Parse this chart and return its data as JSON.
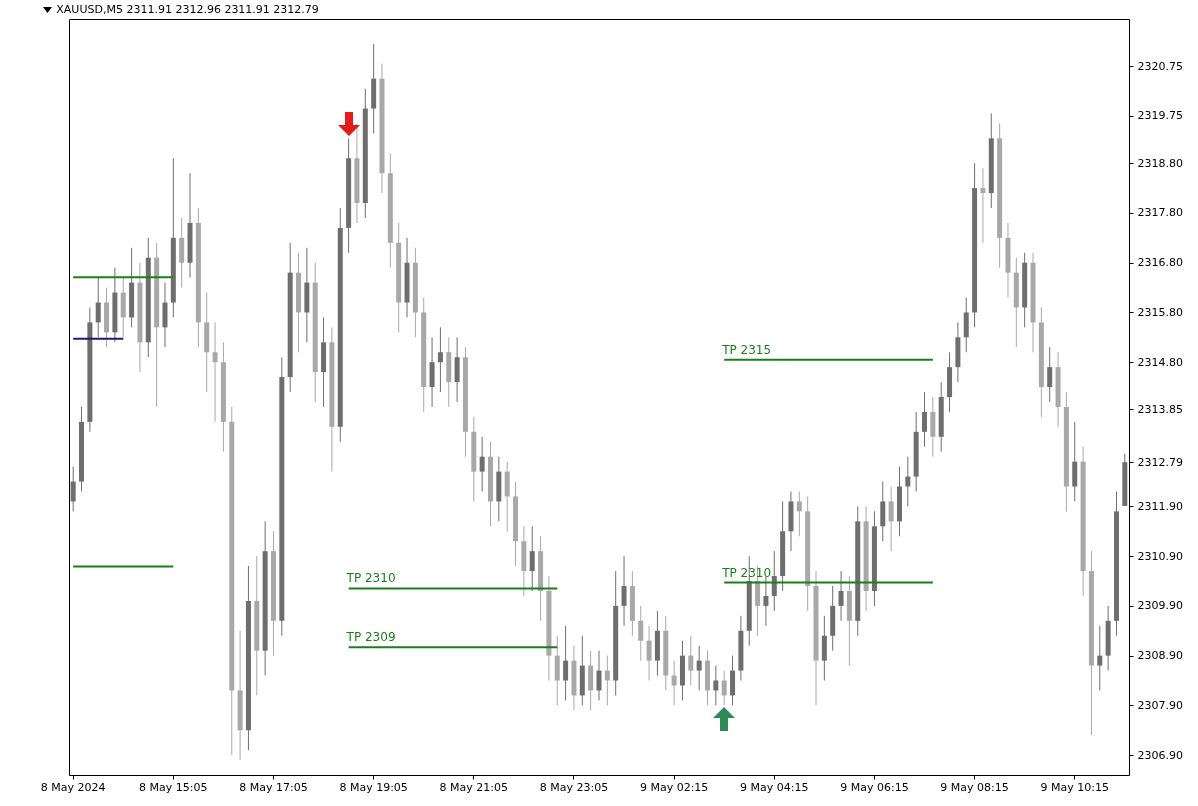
{
  "chart_data": {
    "type": "candlestick",
    "title": "XAUUSD,M5  2311.91 2312.96 2311.91 2312.79",
    "categories": [
      "8 May 2024",
      null,
      null,
      null,
      null,
      null,
      null,
      null,
      null,
      null,
      null,
      null,
      "8 May 15:05",
      null,
      null,
      null,
      null,
      null,
      null,
      null,
      null,
      null,
      null,
      null,
      "8 May 17:05",
      null,
      null,
      null,
      null,
      null,
      null,
      null,
      null,
      null,
      null,
      null,
      "8 May 19:05",
      null,
      null,
      null,
      null,
      null,
      null,
      null,
      null,
      null,
      null,
      null,
      "8 May 21:05",
      null,
      null,
      null,
      null,
      null,
      null,
      null,
      null,
      null,
      null,
      null,
      "8 May 23:05",
      null,
      null,
      null,
      null,
      null,
      null,
      null,
      null,
      null,
      null,
      null,
      "9 May 02:15",
      null,
      null,
      null,
      null,
      null,
      null,
      null,
      null,
      null,
      null,
      null,
      "9 May 04:15",
      null,
      null,
      null,
      null,
      null,
      null,
      null,
      null,
      null,
      null,
      null,
      "9 May 06:15",
      null,
      null,
      null,
      null,
      null,
      null,
      null,
      null,
      null,
      null,
      null,
      "9 May 08:15",
      null,
      null,
      null,
      null,
      null,
      null,
      null,
      null,
      null,
      null,
      null,
      "9 May 10:15",
      null,
      null,
      null,
      null,
      null,
      null
    ],
    "ohlc": [
      [
        2312.0,
        2312.7,
        2311.8,
        2312.4
      ],
      [
        2312.4,
        2313.9,
        2312.2,
        2313.6
      ],
      [
        2313.6,
        2315.9,
        2313.4,
        2315.6
      ],
      [
        2315.6,
        2316.5,
        2315.3,
        2316.0
      ],
      [
        2316.0,
        2316.3,
        2315.1,
        2315.4
      ],
      [
        2315.4,
        2316.7,
        2315.2,
        2316.2
      ],
      [
        2316.2,
        2316.5,
        2315.3,
        2315.7
      ],
      [
        2315.7,
        2317.1,
        2315.5,
        2316.4
      ],
      [
        2316.4,
        2316.8,
        2314.6,
        2315.2
      ],
      [
        2315.2,
        2317.3,
        2314.9,
        2316.9
      ],
      [
        2316.9,
        2317.2,
        2313.9,
        2315.5
      ],
      [
        2315.5,
        2316.4,
        2315.1,
        2316.0
      ],
      [
        2316.0,
        2318.9,
        2315.7,
        2317.3
      ],
      [
        2317.3,
        2317.7,
        2316.3,
        2316.8
      ],
      [
        2316.8,
        2318.6,
        2316.5,
        2317.6
      ],
      [
        2317.6,
        2317.9,
        2315.1,
        2315.6
      ],
      [
        2315.6,
        2316.2,
        2314.2,
        2315.0
      ],
      [
        2315.0,
        2315.6,
        2313.6,
        2314.8
      ],
      [
        2314.8,
        2315.2,
        2313.0,
        2313.6
      ],
      [
        2313.6,
        2313.9,
        2306.9,
        2308.2
      ],
      [
        2308.2,
        2309.4,
        2306.8,
        2307.4
      ],
      [
        2307.4,
        2310.7,
        2307.0,
        2310.0
      ],
      [
        2310.0,
        2310.9,
        2308.1,
        2309.0
      ],
      [
        2309.0,
        2311.6,
        2308.5,
        2311.0
      ],
      [
        2311.0,
        2311.4,
        2308.9,
        2309.6
      ],
      [
        2309.6,
        2314.9,
        2309.3,
        2314.5
      ],
      [
        2314.5,
        2317.2,
        2314.2,
        2316.6
      ],
      [
        2316.6,
        2317.0,
        2315.0,
        2315.8
      ],
      [
        2315.8,
        2317.1,
        2315.2,
        2316.4
      ],
      [
        2316.4,
        2316.8,
        2314.0,
        2314.6
      ],
      [
        2314.6,
        2315.7,
        2313.9,
        2315.2
      ],
      [
        2315.2,
        2315.5,
        2312.6,
        2313.5
      ],
      [
        2313.5,
        2317.9,
        2313.2,
        2317.5
      ],
      [
        2317.5,
        2319.3,
        2317.0,
        2318.9
      ],
      [
        2318.9,
        2319.6,
        2317.6,
        2318.0
      ],
      [
        2318.0,
        2320.3,
        2317.7,
        2319.9
      ],
      [
        2319.9,
        2321.2,
        2319.4,
        2320.5
      ],
      [
        2320.5,
        2320.8,
        2318.2,
        2318.6
      ],
      [
        2318.6,
        2319.0,
        2316.7,
        2317.2
      ],
      [
        2317.2,
        2317.6,
        2315.4,
        2316.0
      ],
      [
        2316.0,
        2317.3,
        2315.7,
        2316.8
      ],
      [
        2316.8,
        2317.1,
        2315.3,
        2315.8
      ],
      [
        2315.8,
        2316.1,
        2313.8,
        2314.3
      ],
      [
        2314.3,
        2315.3,
        2313.9,
        2314.8
      ],
      [
        2314.8,
        2315.5,
        2314.2,
        2315.0
      ],
      [
        2315.0,
        2315.3,
        2313.9,
        2314.4
      ],
      [
        2314.4,
        2315.3,
        2314.0,
        2314.9
      ],
      [
        2314.9,
        2315.1,
        2312.9,
        2313.4
      ],
      [
        2313.4,
        2313.7,
        2312.0,
        2312.6
      ],
      [
        2312.6,
        2313.3,
        2312.2,
        2312.9
      ],
      [
        2312.9,
        2313.2,
        2311.5,
        2312.0
      ],
      [
        2312.0,
        2312.9,
        2311.6,
        2312.6
      ],
      [
        2312.6,
        2312.8,
        2311.4,
        2312.1
      ],
      [
        2312.1,
        2312.4,
        2310.7,
        2311.2
      ],
      [
        2311.2,
        2311.5,
        2310.1,
        2310.6
      ],
      [
        2310.6,
        2311.5,
        2310.2,
        2311.0
      ],
      [
        2311.0,
        2311.3,
        2309.6,
        2310.2
      ],
      [
        2310.2,
        2310.5,
        2308.4,
        2308.9
      ],
      [
        2308.9,
        2309.3,
        2307.9,
        2308.4
      ],
      [
        2308.4,
        2309.5,
        2308.0,
        2308.8
      ],
      [
        2308.8,
        2309.1,
        2307.8,
        2308.1
      ],
      [
        2308.1,
        2309.3,
        2307.9,
        2308.7
      ],
      [
        2308.7,
        2309.0,
        2307.8,
        2308.2
      ],
      [
        2308.2,
        2309.0,
        2308.0,
        2308.6
      ],
      [
        2308.6,
        2308.9,
        2307.9,
        2308.4
      ],
      [
        2308.4,
        2310.6,
        2308.1,
        2309.9
      ],
      [
        2309.9,
        2310.9,
        2309.5,
        2310.3
      ],
      [
        2310.3,
        2310.6,
        2309.3,
        2309.6
      ],
      [
        2309.6,
        2309.9,
        2308.8,
        2309.2
      ],
      [
        2309.2,
        2309.5,
        2308.4,
        2308.8
      ],
      [
        2308.8,
        2309.8,
        2308.5,
        2309.4
      ],
      [
        2309.4,
        2309.7,
        2308.2,
        2308.5
      ],
      [
        2308.5,
        2308.8,
        2307.9,
        2308.3
      ],
      [
        2308.3,
        2309.2,
        2308.0,
        2308.9
      ],
      [
        2308.9,
        2309.3,
        2308.3,
        2308.6
      ],
      [
        2308.6,
        2309.1,
        2308.2,
        2308.8
      ],
      [
        2308.8,
        2309.0,
        2307.9,
        2308.2
      ],
      [
        2308.2,
        2308.7,
        2307.9,
        2308.4
      ],
      [
        2308.4,
        2308.6,
        2307.9,
        2308.1
      ],
      [
        2308.1,
        2308.9,
        2307.9,
        2308.6
      ],
      [
        2308.6,
        2309.7,
        2308.4,
        2309.4
      ],
      [
        2309.4,
        2310.9,
        2309.1,
        2310.4
      ],
      [
        2310.4,
        2310.7,
        2309.3,
        2309.9
      ],
      [
        2309.9,
        2310.5,
        2309.5,
        2310.1
      ],
      [
        2310.1,
        2311.0,
        2309.8,
        2310.5
      ],
      [
        2310.5,
        2312.0,
        2310.2,
        2311.4
      ],
      [
        2311.4,
        2312.2,
        2311.0,
        2312.0
      ],
      [
        2312.0,
        2312.2,
        2311.3,
        2311.8
      ],
      [
        2311.8,
        2312.1,
        2309.8,
        2310.3
      ],
      [
        2310.3,
        2310.6,
        2307.9,
        2308.8
      ],
      [
        2308.8,
        2309.7,
        2308.4,
        2309.3
      ],
      [
        2309.3,
        2310.3,
        2309.0,
        2309.9
      ],
      [
        2309.9,
        2310.6,
        2309.6,
        2310.2
      ],
      [
        2310.2,
        2310.5,
        2308.7,
        2309.6
      ],
      [
        2309.6,
        2311.9,
        2309.3,
        2311.6
      ],
      [
        2311.6,
        2311.9,
        2309.8,
        2310.2
      ],
      [
        2310.2,
        2311.8,
        2309.9,
        2311.5
      ],
      [
        2311.5,
        2312.4,
        2311.2,
        2312.0
      ],
      [
        2312.0,
        2312.3,
        2311.0,
        2311.6
      ],
      [
        2311.6,
        2312.7,
        2311.3,
        2312.3
      ],
      [
        2312.3,
        2312.9,
        2311.9,
        2312.5
      ],
      [
        2312.5,
        2313.8,
        2312.2,
        2313.4
      ],
      [
        2313.4,
        2314.2,
        2313.1,
        2313.8
      ],
      [
        2313.8,
        2314.1,
        2312.9,
        2313.3
      ],
      [
        2313.3,
        2314.4,
        2313.0,
        2314.1
      ],
      [
        2314.1,
        2315.0,
        2313.8,
        2314.7
      ],
      [
        2314.7,
        2315.6,
        2314.4,
        2315.3
      ],
      [
        2315.3,
        2316.1,
        2315.0,
        2315.8
      ],
      [
        2315.8,
        2318.8,
        2315.5,
        2318.3
      ],
      [
        2318.3,
        2318.7,
        2317.2,
        2318.2
      ],
      [
        2318.2,
        2319.8,
        2317.9,
        2319.3
      ],
      [
        2319.3,
        2319.6,
        2316.7,
        2317.3
      ],
      [
        2317.3,
        2317.6,
        2316.1,
        2316.6
      ],
      [
        2316.6,
        2316.9,
        2315.1,
        2315.9
      ],
      [
        2315.9,
        2317.0,
        2315.5,
        2316.8
      ],
      [
        2316.8,
        2317.0,
        2315.0,
        2315.6
      ],
      [
        2315.6,
        2315.9,
        2313.7,
        2314.3
      ],
      [
        2314.3,
        2315.1,
        2314.0,
        2314.7
      ],
      [
        2314.7,
        2315.0,
        2313.5,
        2313.9
      ],
      [
        2313.9,
        2314.2,
        2311.8,
        2312.3
      ],
      [
        2312.3,
        2313.6,
        2312.0,
        2312.8
      ],
      [
        2312.8,
        2313.1,
        2310.1,
        2310.6
      ],
      [
        2310.6,
        2311.0,
        2307.3,
        2308.7
      ],
      [
        2308.7,
        2309.5,
        2308.2,
        2308.9
      ],
      [
        2308.9,
        2309.9,
        2308.6,
        2309.6
      ],
      [
        2309.6,
        2312.2,
        2309.3,
        2311.8
      ],
      [
        2311.91,
        2312.96,
        2311.91,
        2312.79
      ]
    ],
    "colors": [
      "#6e6e6e",
      "#6e6e6e",
      "#6e6e6e",
      "#6e6e6e",
      "#a8a8a8",
      "#6e6e6e",
      "#a8a8a8",
      "#6e6e6e",
      "#a8a8a8",
      "#6e6e6e",
      "#a8a8a8",
      "#6e6e6e",
      "#6e6e6e",
      "#a8a8a8",
      "#6e6e6e",
      "#a8a8a8",
      "#a8a8a8",
      "#a8a8a8",
      "#a8a8a8",
      "#a8a8a8",
      "#a8a8a8",
      "#6e6e6e",
      "#a8a8a8",
      "#6e6e6e",
      "#a8a8a8",
      "#6e6e6e",
      "#6e6e6e",
      "#a8a8a8",
      "#6e6e6e",
      "#a8a8a8",
      "#6e6e6e",
      "#a8a8a8",
      "#6e6e6e",
      "#6e6e6e",
      "#a8a8a8",
      "#6e6e6e",
      "#6e6e6e",
      "#a8a8a8",
      "#a8a8a8",
      "#a8a8a8",
      "#6e6e6e",
      "#a8a8a8",
      "#a8a8a8",
      "#6e6e6e",
      "#6e6e6e",
      "#a8a8a8",
      "#6e6e6e",
      "#a8a8a8",
      "#a8a8a8",
      "#6e6e6e",
      "#a8a8a8",
      "#6e6e6e",
      "#a8a8a8",
      "#a8a8a8",
      "#a8a8a8",
      "#6e6e6e",
      "#a8a8a8",
      "#a8a8a8",
      "#a8a8a8",
      "#6e6e6e",
      "#a8a8a8",
      "#6e6e6e",
      "#a8a8a8",
      "#6e6e6e",
      "#a8a8a8",
      "#6e6e6e",
      "#6e6e6e",
      "#a8a8a8",
      "#a8a8a8",
      "#a8a8a8",
      "#6e6e6e",
      "#a8a8a8",
      "#a8a8a8",
      "#6e6e6e",
      "#a8a8a8",
      "#6e6e6e",
      "#a8a8a8",
      "#6e6e6e",
      "#a8a8a8",
      "#6e6e6e",
      "#6e6e6e",
      "#6e6e6e",
      "#a8a8a8",
      "#6e6e6e",
      "#6e6e6e",
      "#6e6e6e",
      "#6e6e6e",
      "#a8a8a8",
      "#a8a8a8",
      "#a8a8a8",
      "#6e6e6e",
      "#6e6e6e",
      "#6e6e6e",
      "#a8a8a8",
      "#6e6e6e",
      "#a8a8a8",
      "#6e6e6e",
      "#6e6e6e",
      "#a8a8a8",
      "#6e6e6e",
      "#6e6e6e",
      "#6e6e6e",
      "#6e6e6e",
      "#a8a8a8",
      "#6e6e6e",
      "#6e6e6e",
      "#6e6e6e",
      "#6e6e6e",
      "#6e6e6e",
      "#a8a8a8",
      "#6e6e6e",
      "#a8a8a8",
      "#a8a8a8",
      "#a8a8a8",
      "#6e6e6e",
      "#a8a8a8",
      "#a8a8a8",
      "#6e6e6e",
      "#a8a8a8",
      "#a8a8a8",
      "#6e6e6e",
      "#a8a8a8",
      "#a8a8a8",
      "#6e6e6e",
      "#6e6e6e",
      "#6e6e6e",
      "#6e6e6e"
    ],
    "series": [
      {
        "type": "line",
        "color": "#1a7f1a",
        "values": [
          2316.51,
          2316.51,
          2316.51,
          2316.51,
          2316.51,
          2316.51,
          2316.51,
          2316.51,
          2316.51,
          2316.51,
          2316.51,
          2316.51,
          2316.51,
          null,
          null,
          null,
          null,
          null,
          null,
          null,
          null,
          null,
          null,
          null,
          null,
          null,
          null,
          null,
          null,
          null,
          null,
          null,
          null,
          2310.25,
          2310.25,
          2310.25,
          2310.25,
          2310.25,
          2310.25,
          2310.25,
          2310.25,
          2310.25,
          2310.25,
          2310.25,
          2310.25,
          2310.25,
          2310.25,
          2310.25,
          2310.25,
          2310.25,
          2310.25,
          2310.25,
          2310.25,
          2310.25,
          2310.25,
          2310.25,
          2310.25,
          2310.25,
          2310.25,
          null,
          null,
          null,
          null,
          null,
          null,
          null,
          null,
          null,
          null,
          null,
          null,
          null,
          null,
          null,
          null,
          null,
          null,
          null,
          2314.85,
          2314.85,
          2314.85,
          2314.85,
          2314.85,
          2314.85,
          2314.85,
          2314.85,
          2314.85,
          2314.85,
          2314.85,
          2314.85,
          2314.85,
          2314.85,
          2314.85,
          2314.85,
          2314.85,
          2314.85,
          2314.85,
          2314.85,
          2314.85,
          2314.85,
          2314.85,
          2314.85,
          2314.85,
          2314.85,
          null,
          null,
          null,
          null,
          null,
          null,
          null,
          null,
          null,
          null,
          null,
          null,
          null,
          null,
          null,
          null,
          null,
          null,
          null,
          null,
          null,
          null,
          null
        ]
      },
      {
        "type": "line",
        "color": "#1a7f1a",
        "values": [
          2310.69,
          2310.69,
          2310.69,
          2310.69,
          2310.69,
          2310.69,
          2310.69,
          2310.69,
          2310.69,
          2310.69,
          2310.69,
          2310.69,
          2310.69,
          null,
          null,
          null,
          null,
          null,
          null,
          null,
          null,
          null,
          null,
          null,
          null,
          null,
          null,
          null,
          null,
          null,
          null,
          null,
          null,
          2309.07,
          2309.07,
          2309.07,
          2309.07,
          2309.07,
          2309.07,
          2309.07,
          2309.07,
          2309.07,
          2309.07,
          2309.07,
          2309.07,
          2309.07,
          2309.07,
          2309.07,
          2309.07,
          2309.07,
          2309.07,
          2309.07,
          2309.07,
          2309.07,
          2309.07,
          2309.07,
          2309.07,
          2309.07,
          2309.07,
          null,
          null,
          null,
          null,
          null,
          null,
          null,
          null,
          null,
          null,
          null,
          null,
          null,
          null,
          null,
          null,
          null,
          null,
          null,
          2310.37,
          2310.37,
          2310.37,
          2310.37,
          2310.37,
          2310.37,
          2310.37,
          2310.37,
          2310.37,
          2310.37,
          2310.37,
          2310.37,
          2310.37,
          2310.37,
          2310.37,
          2310.37,
          2310.37,
          2310.37,
          2310.37,
          2310.37,
          2310.37,
          2310.37,
          2310.37,
          2310.37,
          2310.37,
          2310.37,
          null,
          null,
          null,
          null,
          null,
          null,
          null,
          null,
          null,
          null,
          null,
          null,
          null,
          null,
          null,
          null,
          null,
          null,
          null,
          null,
          null,
          null,
          null
        ]
      },
      {
        "type": "line",
        "color": "#1c1c6e",
        "values": [
          2315.27,
          2315.27,
          2315.27,
          2315.27,
          2315.27,
          2315.27,
          2315.27,
          null,
          null,
          null,
          null,
          null,
          null,
          null,
          null,
          null,
          null,
          null,
          null,
          null,
          null,
          null,
          null,
          null,
          null,
          null,
          null,
          null,
          null,
          null,
          null,
          null,
          null,
          null,
          null,
          null,
          null,
          null,
          null,
          null,
          null,
          null,
          null,
          null,
          null,
          null,
          null,
          null,
          null,
          null,
          null,
          null,
          null,
          null,
          null,
          null,
          null,
          null,
          null,
          null,
          null,
          null,
          null,
          null,
          null,
          null,
          null,
          null,
          null,
          null,
          null,
          null,
          null,
          null,
          null,
          null,
          null,
          null,
          null,
          null,
          null,
          null,
          null,
          null,
          null,
          null,
          null,
          null,
          null,
          null,
          null,
          null,
          null,
          null,
          null,
          null,
          null,
          null,
          null,
          null,
          null,
          null,
          null,
          null,
          null,
          null,
          null,
          null,
          null,
          null,
          null,
          null,
          null,
          null,
          null,
          null,
          null,
          null,
          null,
          null,
          null,
          null,
          null,
          null,
          null,
          null,
          null
        ]
      }
    ],
    "annotations": [
      {
        "text": "TP 2310",
        "y": 2310.25
      },
      {
        "text": "TP 2309",
        "y": 2309.07
      },
      {
        "text": "TP 2315",
        "y": 2314.85
      },
      {
        "text": "TP 2310",
        "y": 2310.37
      }
    ],
    "ylim": [
      2306.5,
      2321.7
    ],
    "yticks": [
      {
        "value": 2306.9,
        "label": "2306.90"
      },
      {
        "value": 2307.9,
        "label": "2307.90"
      },
      {
        "value": 2308.9,
        "label": "2308.90"
      },
      {
        "value": 2309.9,
        "label": "2309.90"
      },
      {
        "value": 2310.9,
        "label": "2310.90"
      },
      {
        "value": 2311.9,
        "label": "2311.90"
      },
      2312.79,
      2313.85,
      {
        "value": 2314.8,
        "label": "2314.80"
      },
      {
        "value": 2315.8,
        "label": "2315.80"
      },
      {
        "value": 2316.8,
        "label": "2316.80"
      },
      {
        "value": 2317.8,
        "label": "2317.80"
      },
      {
        "value": 2318.8,
        "label": "2318.80"
      },
      2319.75,
      2320.75
    ]
  }
}
